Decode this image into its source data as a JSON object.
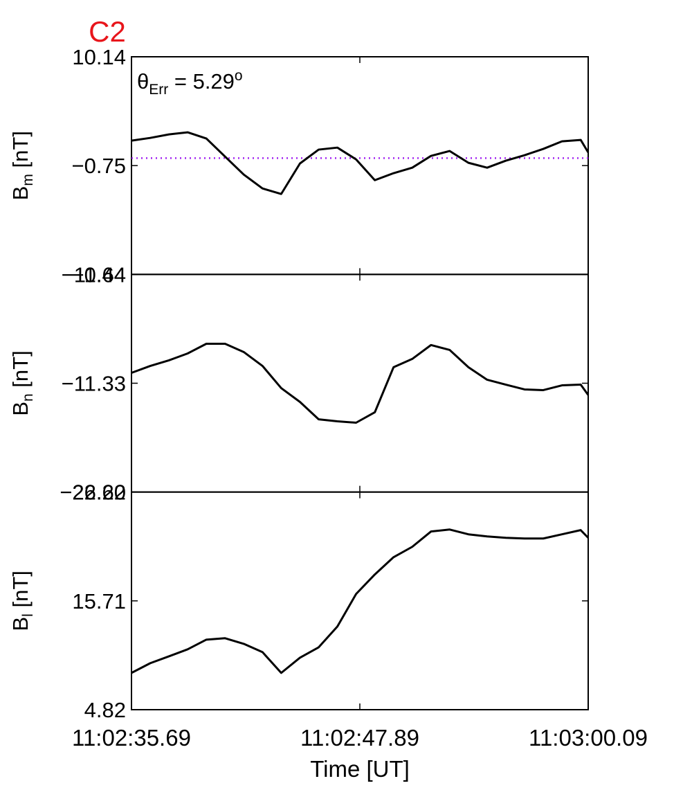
{
  "chart_data": [
    {
      "type": "line",
      "title": "C2",
      "title_color": "#e8151b",
      "annotation": {
        "symbol": "θ",
        "sub": "Err",
        "text": " =  5.29",
        "sup": "o"
      },
      "ylabel": {
        "main": "B",
        "sub": "m",
        "unit": " [nT]"
      },
      "x": [
        "11:02:35.69",
        "11:02:36.69",
        "11:02:37.69",
        "11:02:38.69",
        "11:02:39.69",
        "11:02:40.69",
        "11:02:41.69",
        "11:02:42.69",
        "11:02:43.69",
        "11:02:44.69",
        "11:02:45.69",
        "11:02:46.69",
        "11:02:47.69",
        "11:02:48.69",
        "11:02:49.69",
        "11:02:50.69",
        "11:02:51.69",
        "11:02:52.69",
        "11:02:53.69",
        "11:02:54.69",
        "11:02:55.69",
        "11:02:56.69",
        "11:02:57.69",
        "11:02:58.69",
        "11:02:59.69",
        "11:03:00.09"
      ],
      "values": [
        1.75,
        2.02,
        2.37,
        2.58,
        1.96,
        0.15,
        -1.65,
        -3.04,
        -3.59,
        -0.54,
        0.85,
        1.05,
        -0.13,
        -2.21,
        -1.51,
        -0.96,
        0.22,
        0.71,
        -0.47,
        -0.96,
        -0.26,
        0.29,
        0.92,
        1.68,
        1.82,
        0.57
      ],
      "color": "#000000",
      "hline": 0,
      "hline_color": "#a020f0",
      "xlim": [
        "11:02:35.69",
        "11:03:00.09"
      ],
      "ylim": [
        -11.64,
        10.14
      ],
      "yticks": [
        {
          "value": -11.64,
          "label": "−11.64"
        },
        {
          "value": -0.75,
          "label": "−0.75"
        },
        10.14
      ]
    },
    {
      "type": "line",
      "ylabel": {
        "main": "B",
        "sub": "n",
        "unit": " [nT]"
      },
      "x": [
        "11:02:35.69",
        "11:02:36.69",
        "11:02:37.69",
        "11:02:38.69",
        "11:02:39.69",
        "11:02:40.69",
        "11:02:41.69",
        "11:02:42.69",
        "11:02:43.69",
        "11:02:44.69",
        "11:02:45.69",
        "11:02:46.69",
        "11:02:47.69",
        "11:02:48.69",
        "11:02:49.69",
        "11:02:50.69",
        "11:02:51.69",
        "11:02:52.69",
        "11:02:53.69",
        "11:02:54.69",
        "11:02:55.69",
        "11:02:56.69",
        "11:02:57.69",
        "11:02:58.69",
        "11:02:59.69",
        "11:03:00.09"
      ],
      "values": [
        -10.29,
        -9.6,
        -9.04,
        -8.35,
        -7.38,
        -7.38,
        -8.21,
        -9.6,
        -11.82,
        -13.2,
        -14.94,
        -15.14,
        -15.28,
        -14.24,
        -9.73,
        -8.9,
        -7.51,
        -8.0,
        -9.73,
        -10.98,
        -11.47,
        -11.95,
        -12.02,
        -11.54,
        -11.47,
        -12.51
      ],
      "color": "#000000",
      "xlim": [
        "11:02:35.69",
        "11:03:00.09"
      ],
      "ylim": [
        -22.22,
        -0.44
      ],
      "yticks": [
        {
          "value": -22.22,
          "label": "−22.22"
        },
        {
          "value": -11.33,
          "label": "−11.33"
        },
        {
          "value": -0.44,
          "label": "−0.44"
        }
      ]
    },
    {
      "type": "line",
      "ylabel": {
        "main": "B",
        "sub": "l",
        "unit": " [nT]"
      },
      "xlabel": "Time [UT]",
      "x": [
        "11:02:35.69",
        "11:02:36.69",
        "11:02:37.69",
        "11:02:38.69",
        "11:02:39.69",
        "11:02:40.69",
        "11:02:41.69",
        "11:02:42.69",
        "11:02:43.69",
        "11:02:44.69",
        "11:02:45.69",
        "11:02:46.69",
        "11:02:47.69",
        "11:02:48.69",
        "11:02:49.69",
        "11:02:50.69",
        "11:02:51.69",
        "11:02:52.69",
        "11:02:53.69",
        "11:02:54.69",
        "11:02:55.69",
        "11:02:56.69",
        "11:02:57.69",
        "11:02:58.69",
        "11:02:59.69",
        "11:03:00.09"
      ],
      "values": [
        8.5,
        9.47,
        10.16,
        10.86,
        11.83,
        11.97,
        11.41,
        10.58,
        8.5,
        10.02,
        11.06,
        13.14,
        16.4,
        18.35,
        20.08,
        21.12,
        22.65,
        22.85,
        22.37,
        22.16,
        22.02,
        21.95,
        21.95,
        22.37,
        22.79,
        22.02
      ],
      "color": "#000000",
      "xlim": [
        "11:02:35.69",
        "11:03:00.09"
      ],
      "xticks": [
        "11:02:35.69",
        "11:02:47.89",
        "11:03:00.09"
      ],
      "ylim": [
        4.82,
        26.6
      ],
      "yticks": [
        4.82,
        15.71,
        {
          "value": 26.6,
          "label": "26.60"
        }
      ]
    }
  ]
}
